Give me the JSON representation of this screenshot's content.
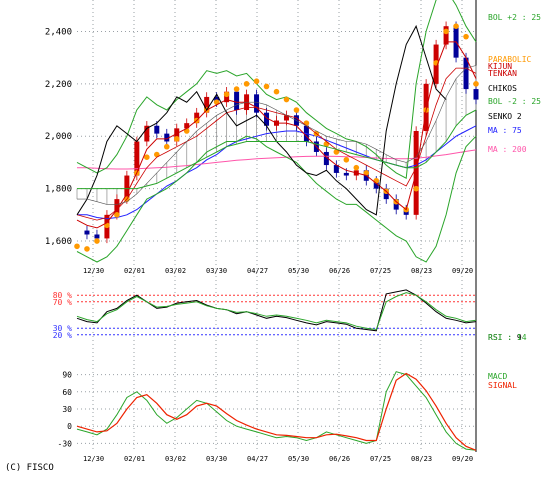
{
  "copyright": "(C) FISCO",
  "colors": {
    "grid": "#9aa0a6",
    "bol_up": "#2aa52a",
    "bol_down": "#2aa52a",
    "senko2": "#2aa52a",
    "ma75": "#2222ff",
    "ma200": "#ff55aa",
    "parabolic": "#ff9900",
    "tenkan": "#cc0000",
    "chiko": "#000000",
    "candle_up": "#cc0000",
    "candle_down": "#000099",
    "rsi9": "#000000",
    "rsi14": "#2aa52a",
    "rsi_over": "#ff3333",
    "rsi_under": "#3333ff",
    "macd": "#2aa52a",
    "signal": "#ee2200",
    "ichimoku_fill": "#999999"
  },
  "chart_data": [
    {
      "type": "line",
      "panel": "price",
      "x_labels": [
        "12/30",
        "02/01",
        "03/02",
        "03/30",
        "04/27",
        "05/30",
        "06/26",
        "07/25",
        "08/23",
        "09/20"
      ],
      "y_ticks": [
        1600,
        1800,
        2000,
        2200,
        2400
      ],
      "y_tick_labels": [
        "1,600",
        "1,800",
        "2,000",
        "2,200",
        "2,400"
      ],
      "ylim": [
        1520,
        2520
      ],
      "legend": [
        {
          "label": "BOL +2 : 25",
          "color": "#2aa52a"
        },
        {
          "label": "PARABOLIC",
          "color": "#ff9900"
        },
        {
          "label": "KIJUN",
          "color": "#cc0000"
        },
        {
          "label": "TENKAN",
          "color": "#cc0000"
        },
        {
          "label": "CHIKOS",
          "color": "#000000"
        },
        {
          "label": "BOL -2 : 25",
          "color": "#2aa52a"
        },
        {
          "label": "SENKO 2",
          "color": "#000000"
        },
        {
          "label": "MA : 75",
          "color": "#2222ff"
        },
        {
          "label": "MA : 200",
          "color": "#ff55aa"
        }
      ],
      "series": [
        {
          "key": "close",
          "values": [
            1640,
            1625,
            1610,
            1700,
            1760,
            1850,
            1980,
            2040,
            2010,
            1980,
            2030,
            2050,
            2090,
            2150,
            2130,
            2170,
            2100,
            2160,
            2090,
            2040,
            2060,
            2080,
            2040,
            1980,
            1940,
            1890,
            1860,
            1850,
            1870,
            1830,
            1800,
            1760,
            1720,
            1700,
            2020,
            2200,
            2350,
            2420,
            2300,
            2180,
            2140
          ]
        },
        {
          "key": "ma75",
          "values": [
            1700,
            1700,
            1690,
            1685,
            1690,
            1700,
            1720,
            1750,
            1780,
            1810,
            1830,
            1860,
            1880,
            1910,
            1930,
            1960,
            1980,
            1990,
            2000,
            2010,
            2015,
            2020,
            2020,
            2010,
            2000,
            1985,
            1970,
            1955,
            1940,
            1925,
            1910,
            1900,
            1890,
            1880,
            1890,
            1910,
            1940,
            1970,
            2000,
            2020,
            2040
          ]
        },
        {
          "key": "ma200",
          "values": [
            1880,
            1880,
            1878,
            1876,
            1875,
            1875,
            1876,
            1878,
            1880,
            1882,
            1885,
            1888,
            1892,
            1896,
            1900,
            1904,
            1908,
            1911,
            1914,
            1916,
            1918,
            1920,
            1922,
            1923,
            1924,
            1924,
            1923,
            1922,
            1921,
            1919,
            1917,
            1915,
            1914,
            1914,
            1916,
            1920,
            1925,
            1930,
            1936,
            1942,
            1948
          ]
        },
        {
          "key": "bol_up",
          "values": [
            1900,
            1880,
            1860,
            1880,
            1930,
            2000,
            2100,
            2150,
            2120,
            2100,
            2140,
            2170,
            2200,
            2250,
            2240,
            2250,
            2230,
            2240,
            2200,
            2160,
            2140,
            2150,
            2130,
            2090,
            2060,
            2030,
            2010,
            1990,
            1980,
            1960,
            1930,
            1890,
            1860,
            1840,
            2200,
            2400,
            2520,
            2560,
            2500,
            2420,
            2360
          ]
        },
        {
          "key": "bol_down",
          "values": [
            1560,
            1540,
            1520,
            1540,
            1580,
            1640,
            1700,
            1760,
            1780,
            1800,
            1830,
            1860,
            1900,
            1940,
            1960,
            1980,
            1980,
            2000,
            1990,
            1960,
            1940,
            1920,
            1900,
            1860,
            1820,
            1790,
            1760,
            1740,
            1740,
            1710,
            1680,
            1650,
            1620,
            1600,
            1540,
            1520,
            1580,
            1700,
            1860,
            1960,
            2000
          ]
        },
        {
          "key": "parabolic",
          "values": [
            1580,
            1570,
            1600,
            1660,
            1700,
            1760,
            1860,
            1920,
            1930,
            1960,
            1990,
            2020,
            2060,
            2100,
            2130,
            2160,
            2180,
            2200,
            2210,
            2190,
            2170,
            2140,
            2100,
            2050,
            2010,
            1970,
            1940,
            1910,
            1880,
            1860,
            1830,
            1790,
            1750,
            1720,
            1800,
            2100,
            2280,
            2400,
            2420,
            2380,
            2200
          ]
        },
        {
          "key": "tenkan",
          "values": [
            1680,
            1660,
            1650,
            1670,
            1720,
            1780,
            1860,
            1950,
            1990,
            1990,
            2010,
            2030,
            2060,
            2100,
            2120,
            2140,
            2130,
            2130,
            2110,
            2070,
            2050,
            2050,
            2040,
            2000,
            1960,
            1920,
            1890,
            1870,
            1860,
            1850,
            1820,
            1790,
            1750,
            1720,
            1860,
            2100,
            2260,
            2360,
            2360,
            2300,
            2220
          ]
        },
        {
          "key": "kijun",
          "values": [
            1700,
            1690,
            1680,
            1690,
            1720,
            1760,
            1820,
            1880,
            1920,
            1940,
            1960,
            1980,
            2000,
            2030,
            2060,
            2090,
            2100,
            2110,
            2110,
            2100,
            2090,
            2080,
            2070,
            2040,
            2010,
            1980,
            1950,
            1930,
            1910,
            1890,
            1870,
            1850,
            1830,
            1810,
            1880,
            2000,
            2120,
            2220,
            2260,
            2260,
            2240
          ]
        },
        {
          "key": "chiko",
          "values": [
            1700,
            1760,
            1850,
            1980,
            2040,
            2010,
            1980,
            2030,
            2050,
            2090,
            2150,
            2130,
            2170,
            2100,
            2160,
            2090,
            2040,
            2060,
            2080,
            2040,
            1980,
            1940,
            1890,
            1860,
            1850,
            1870,
            1830,
            1800,
            1760,
            1720,
            1700,
            2020,
            2200,
            2350,
            2420,
            2300,
            2180,
            2140,
            null,
            null,
            null
          ]
        },
        {
          "key": "senko1",
          "values": [
            1760,
            1760,
            1750,
            1740,
            1740,
            1750,
            1780,
            1820,
            1860,
            1900,
            1940,
            1980,
            2020,
            2050,
            2080,
            2100,
            2120,
            2130,
            2130,
            2120,
            2100,
            2080,
            2060,
            2040,
            2020,
            2000,
            1990,
            1980,
            1980,
            1970,
            1950,
            1930,
            1910,
            1900,
            1920,
            1980,
            2060,
            2150,
            2220,
            2260,
            2270
          ]
        },
        {
          "key": "senko2",
          "values": [
            1800,
            1800,
            1800,
            1800,
            1800,
            1800,
            1800,
            1810,
            1820,
            1840,
            1860,
            1880,
            1900,
            1920,
            1940,
            1960,
            1970,
            1980,
            1980,
            1980,
            1980,
            1980,
            1980,
            1980,
            1970,
            1960,
            1950,
            1940,
            1930,
            1920,
            1910,
            1900,
            1890,
            1880,
            1880,
            1900,
            1940,
            1980,
            2040,
            2080,
            2100
          ]
        }
      ]
    },
    {
      "type": "line",
      "panel": "rsi",
      "y_ticks": [
        20,
        30,
        70,
        80
      ],
      "y_tick_labels": [
        "20 %",
        "30 %",
        "70 %",
        "80 %"
      ],
      "ylim": [
        0,
        100
      ],
      "legend": [
        {
          "label": "RSI : 9",
          "color": "#000000"
        },
        {
          "label": "RSI : 14",
          "color": "#2aa52a"
        }
      ],
      "series": [
        {
          "key": "rsi9",
          "values": [
            45,
            40,
            38,
            55,
            60,
            72,
            80,
            70,
            60,
            62,
            68,
            70,
            72,
            65,
            60,
            58,
            52,
            55,
            50,
            45,
            48,
            46,
            42,
            38,
            35,
            40,
            38,
            36,
            30,
            28,
            26,
            82,
            85,
            88,
            80,
            68,
            55,
            45,
            42,
            38,
            40
          ]
        },
        {
          "key": "rsi14",
          "values": [
            48,
            43,
            40,
            52,
            58,
            70,
            78,
            70,
            62,
            63,
            66,
            68,
            70,
            64,
            60,
            58,
            54,
            55,
            52,
            48,
            50,
            48,
            45,
            42,
            38,
            42,
            40,
            38,
            33,
            30,
            28,
            70,
            78,
            84,
            80,
            70,
            58,
            48,
            45,
            40,
            42
          ]
        }
      ]
    },
    {
      "type": "line",
      "panel": "macd",
      "y_ticks": [
        -30,
        0,
        30,
        60,
        90
      ],
      "y_tick_labels": [
        "-30",
        "0",
        "30",
        "60",
        "90"
      ],
      "ylim": [
        -45,
        105
      ],
      "legend": [
        {
          "label": "MACD",
          "color": "#2aa52a"
        },
        {
          "label": "SIGNAL",
          "color": "#ee2200"
        }
      ],
      "series": [
        {
          "key": "macd",
          "values": [
            -5,
            -10,
            -15,
            -5,
            20,
            50,
            60,
            45,
            20,
            5,
            15,
            30,
            45,
            40,
            25,
            10,
            0,
            -5,
            -10,
            -15,
            -20,
            -18,
            -20,
            -25,
            -20,
            -10,
            -15,
            -20,
            -25,
            -30,
            -25,
            60,
            95,
            90,
            70,
            50,
            20,
            -10,
            -30,
            -40,
            -42
          ]
        },
        {
          "key": "signal",
          "values": [
            0,
            -5,
            -10,
            -8,
            5,
            30,
            50,
            55,
            40,
            20,
            12,
            20,
            35,
            40,
            35,
            22,
            10,
            2,
            -5,
            -10,
            -15,
            -16,
            -18,
            -20,
            -20,
            -15,
            -14,
            -17,
            -20,
            -25,
            -25,
            30,
            80,
            92,
            82,
            62,
            35,
            5,
            -20,
            -35,
            -42
          ]
        }
      ]
    }
  ]
}
